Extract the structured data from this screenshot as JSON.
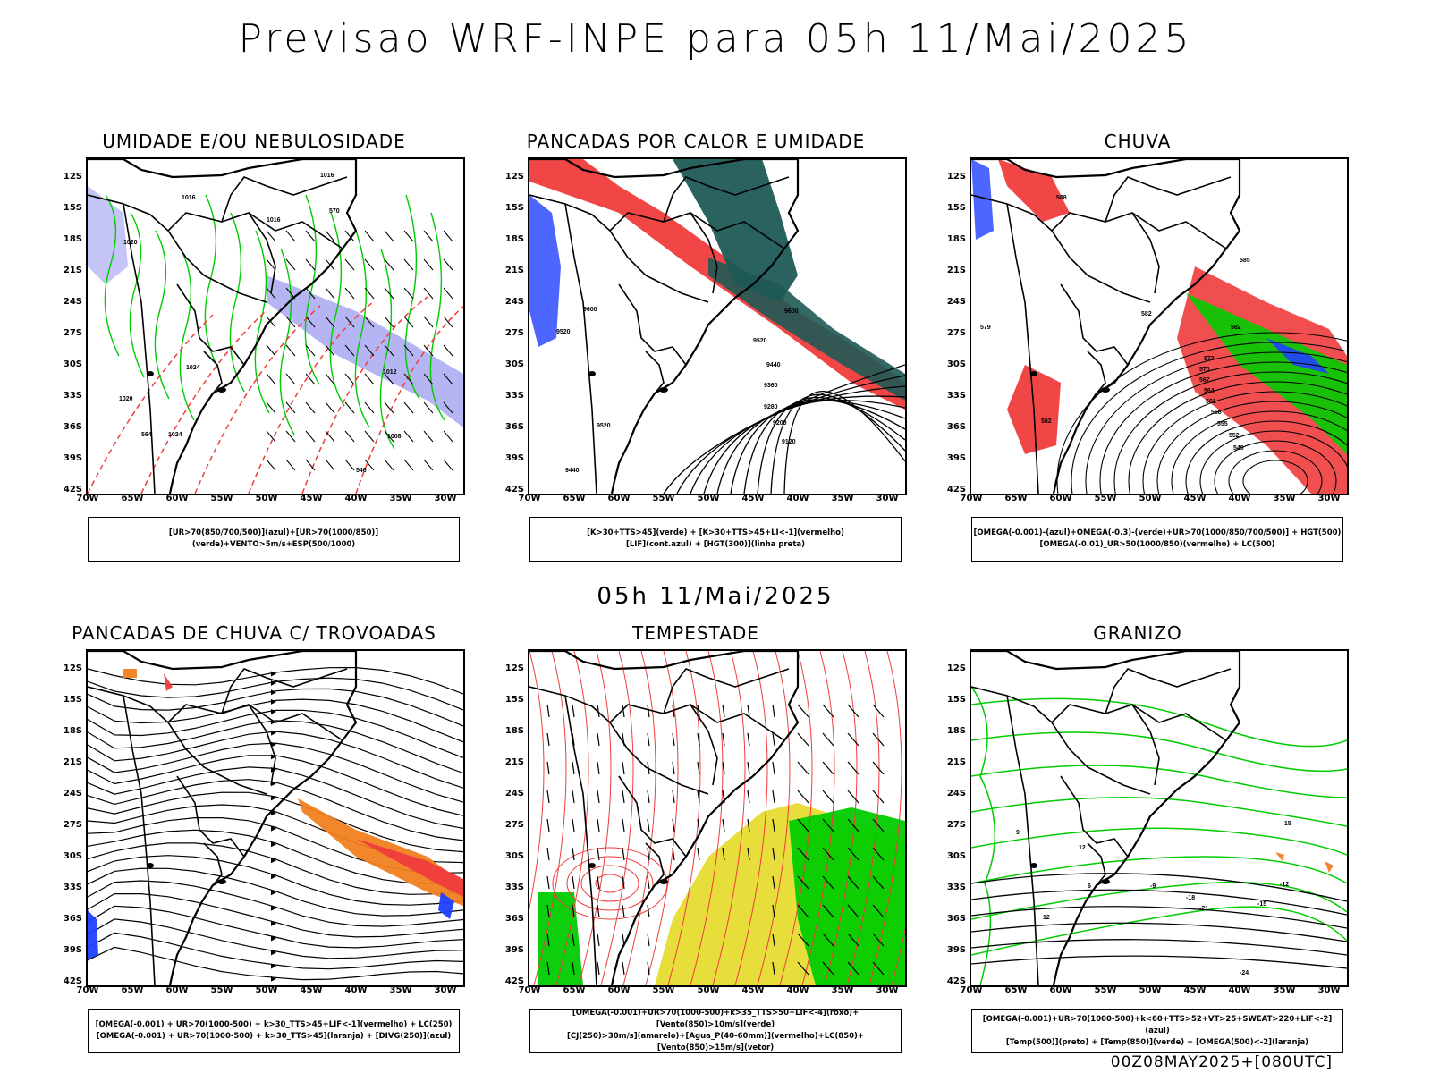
{
  "main_title": "Previsao WRF-INPE  para 05h 11/Mai/2025",
  "mid_time": "05h 11/Mai/2025",
  "footer": "00Z08MAY2025+[080UTC]",
  "y_ticks": [
    "12S",
    "15S",
    "18S",
    "21S",
    "24S",
    "27S",
    "30S",
    "33S",
    "36S",
    "39S",
    "42S"
  ],
  "x_ticks": [
    "70W",
    "65W",
    "60W",
    "55W",
    "50W",
    "45W",
    "40W",
    "35W",
    "30W"
  ],
  "colors": {
    "blue": "#2040ff",
    "lightblue": "#9c9cf0",
    "green": "#00cc00",
    "red": "#f03c3c",
    "orange": "#f08020",
    "teal": "#1e5a55",
    "yellow": "#e6dc32",
    "black": "#000000"
  },
  "panels": [
    {
      "title": "UMIDADE E/OU NEBULOSIDADE",
      "legend": [
        "[UR>70(850/700/500)](azul)+[UR>70(1000/850)](verde)+VENTO>5m/s+ESP(500/1000)"
      ],
      "labels": [
        "1016",
        "1016",
        "1016",
        "1020",
        "1024",
        "1024",
        "1012",
        "1008",
        "1020",
        "570",
        "564",
        "546"
      ]
    },
    {
      "title": "PANCADAS POR CALOR E UMIDADE",
      "legend": [
        "[K>30+TTS>45](verde) + [K>30+TTS>45+LI<-1](vermelho)",
        "[LIF](cont.azul) + [HGT(300)](linha preta)"
      ],
      "labels": [
        "9600",
        "9600",
        "9520",
        "9520",
        "9440",
        "9360",
        "9280",
        "9200",
        "9120",
        "9520",
        "9440"
      ]
    },
    {
      "title": "CHUVA",
      "legend": [
        "[OMEGA(-0.001)-(azul)+OMEGA(-0.3)-(verde)+UR>70(1000/850/700/500)] + HGT(500)",
        "[OMEGA(-0.01)_UR>50(1000/850)(vermelho) + LC(500)"
      ],
      "labels": [
        "588",
        "585",
        "582",
        "582",
        "579",
        "573",
        "570",
        "567",
        "564",
        "561",
        "558",
        "555",
        "552",
        "549",
        "582"
      ]
    },
    {
      "title": "PANCADAS DE CHUVA C/ TROVOADAS",
      "legend": [
        "[OMEGA(-0.001) + UR>70(1000-500) + k>30_TTS>45+LIF<-1](vermelho) + LC(250)",
        "[OMEGA(-0.001) + UR>70(1000-500) + k>30_TTS>45](laranja) + [DIVG(250)](azul)"
      ],
      "labels": []
    },
    {
      "title": "TEMPESTADE",
      "legend": [
        "[OMEGA(-0.001)+UR>70(1000-500)+k>35_TTS>50+LIF<-4](roxo)+[Vento(850)>10m/s](verde)",
        "[CJ(250)>30m/s](amarelo)+[Agua_P(40-60mm)](vermelho)+LC(850)+[Vento(850)>15m/s](vetor)"
      ],
      "labels": []
    },
    {
      "title": "GRANIZO",
      "legend": [
        "[OMEGA(-0.001)+UR>70(1000-500)+k<60+TTS>52+VT>25+SWEAT>220+LIF<-2](azul)",
        "[Temp(500)](preto) + [Temp(850)](verde) + [OMEGA(500)<-2](laranja)"
      ],
      "labels": [
        "-15",
        "-18",
        "-21",
        "-12",
        "-9",
        "-24",
        "15",
        "12",
        "12",
        "9",
        "6"
      ]
    }
  ]
}
